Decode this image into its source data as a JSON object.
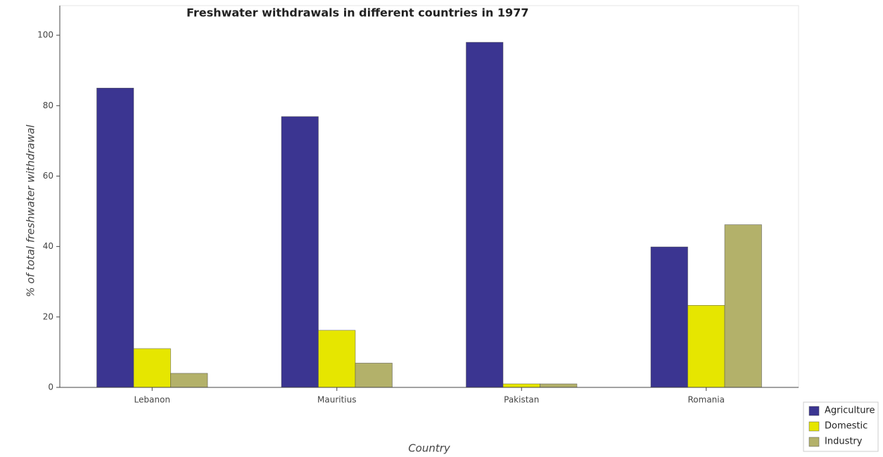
{
  "chart_data": {
    "type": "bar",
    "title": "Freshwater withdrawals in different countries in 1977",
    "x_label": "Country",
    "y_label": "% of total freshwater withdrawal",
    "categories": [
      "Lebanon",
      "Mauritius",
      "Pakistan",
      "Romania"
    ],
    "series": [
      {
        "name": "Agriculture",
        "color": "#3b3591",
        "values": [
          85,
          76.9,
          98,
          39.9
        ]
      },
      {
        "name": "Domestic",
        "color": "#e6e600",
        "values": [
          11,
          16.2,
          1,
          23.3
        ]
      },
      {
        "name": "Industry",
        "color": "#b3b16a",
        "values": [
          4,
          6.9,
          1,
          46.2
        ]
      }
    ],
    "ylim": [
      0,
      108.4
    ],
    "yticks": [
      0,
      20,
      40,
      60,
      80,
      100
    ],
    "legend": "lower right"
  }
}
